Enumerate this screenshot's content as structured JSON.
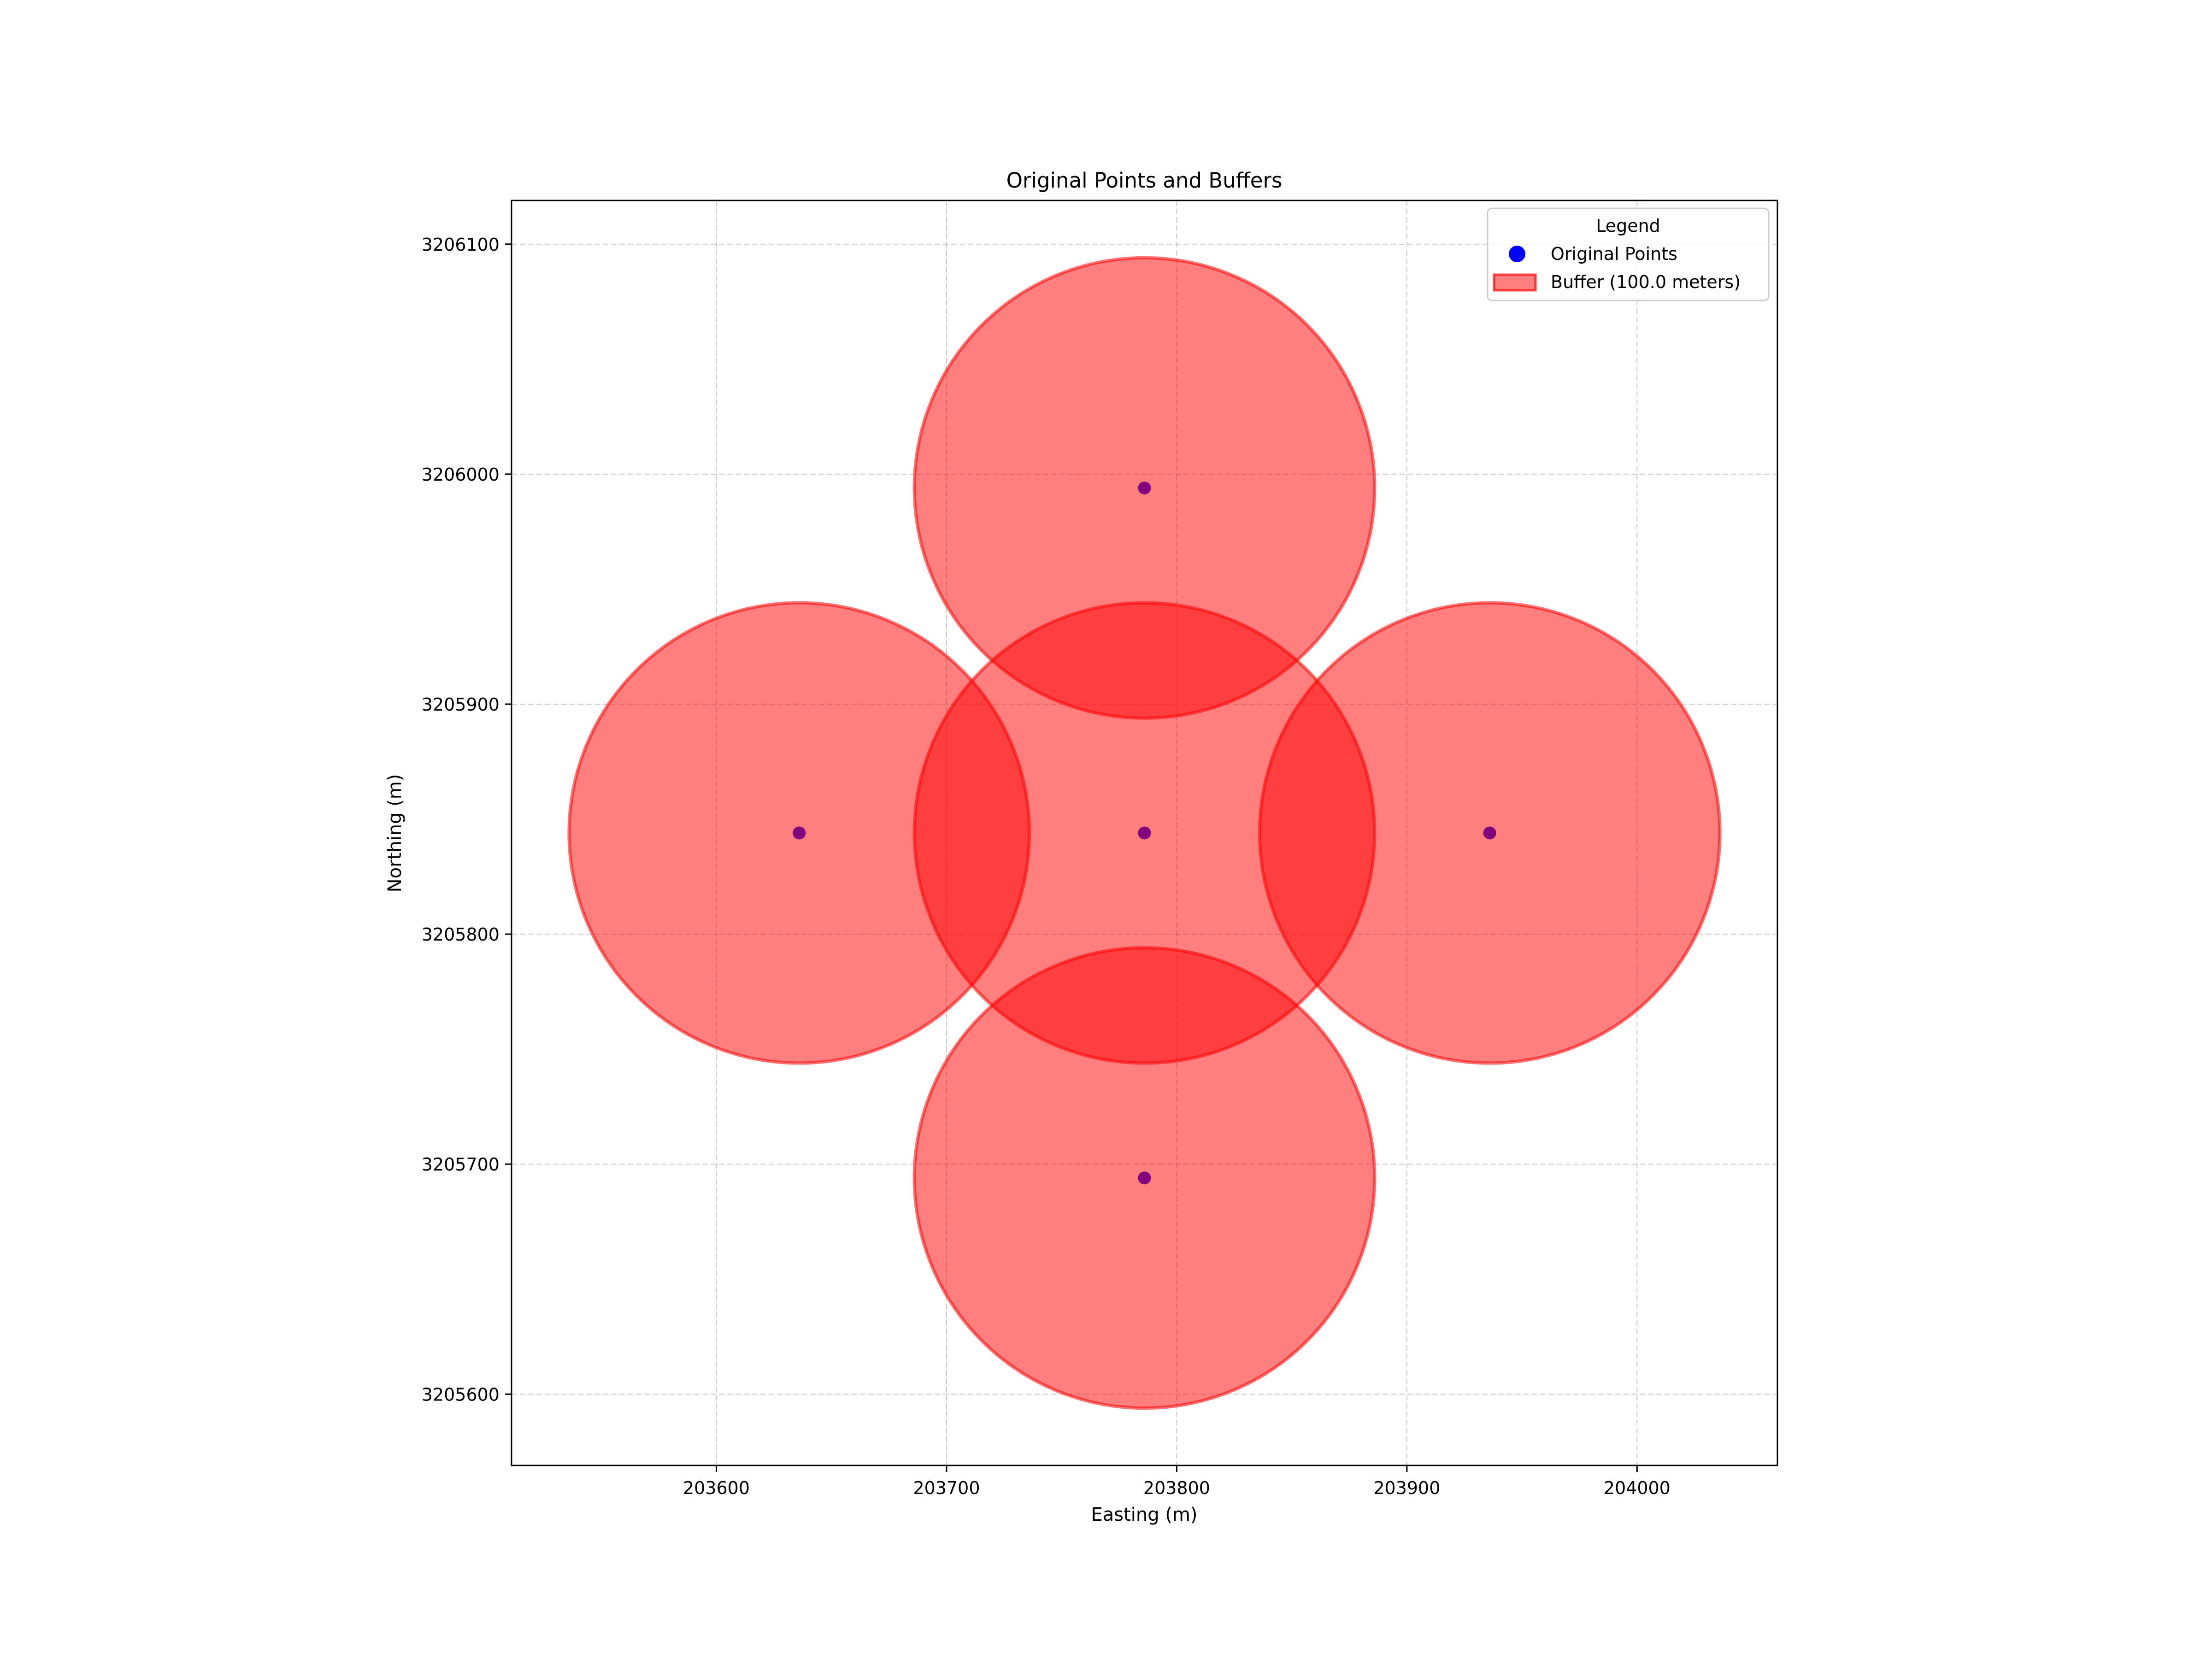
{
  "chart_data": {
    "type": "scatter",
    "title": "Original Points and Buffers",
    "xlabel": "Easting (m)",
    "ylabel": "Northing (m)",
    "xlim": [
      203511,
      204061
    ],
    "ylim": [
      3205569,
      3206119
    ],
    "xticks": [
      203600,
      203700,
      203800,
      203900,
      204000
    ],
    "yticks": [
      3205600,
      3205700,
      3205800,
      3205900,
      3206000,
      3206100
    ],
    "grid": true,
    "legend": {
      "title": "Legend",
      "placement": "top-right",
      "entries": [
        "Original Points",
        "Buffer (100.0 meters)"
      ]
    },
    "buffer_radius": 100.0,
    "points": [
      {
        "x": 203786,
        "y": 3205994
      },
      {
        "x": 203636,
        "y": 3205844
      },
      {
        "x": 203786,
        "y": 3205844
      },
      {
        "x": 203936,
        "y": 3205844
      },
      {
        "x": 203786,
        "y": 3205694
      }
    ],
    "colors": {
      "point": "#800080",
      "legend_point": "#0000ff",
      "buffer_fill": "#ff0000",
      "buffer_edge": "#ff0000",
      "grid": "#b0b0b0"
    }
  }
}
